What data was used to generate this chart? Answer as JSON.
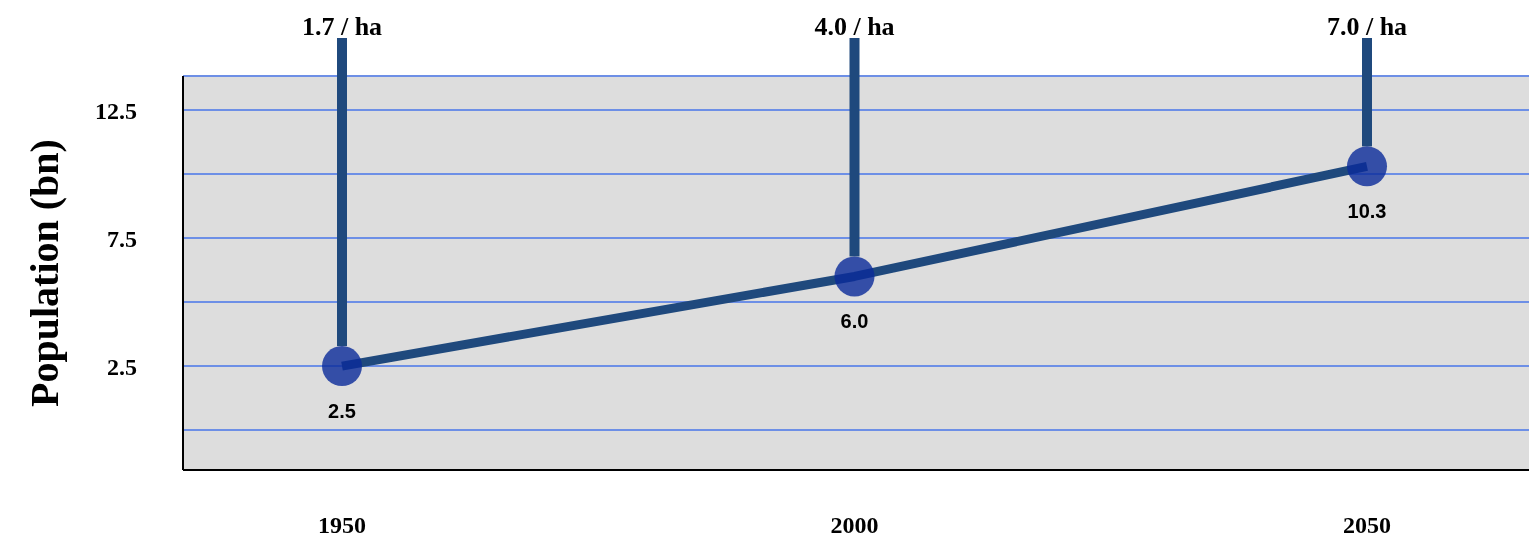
{
  "chart_data": {
    "type": "line",
    "ylabel": "Population (bn)",
    "categories": [
      "1950",
      "2000",
      "2050"
    ],
    "series": [
      {
        "color": "#1f497d",
        "values": [
          2.5,
          6.0,
          10.3
        ],
        "value_labels": [
          "2.5",
          "6.0",
          "10.3"
        ]
      }
    ],
    "ylim": [
      -1.56,
      13.83
    ],
    "yticks": [
      {
        "value": 0,
        "label": null
      },
      2.5,
      {
        "value": 5,
        "label": null
      },
      7.5,
      {
        "value": 10,
        "label": null
      },
      12.5
    ],
    "grid": "y",
    "marker": "circle",
    "line_style": "solid",
    "annotations": [
      "1.7 / ha",
      "4.0 / ha",
      "7.0 / ha"
    ]
  }
}
